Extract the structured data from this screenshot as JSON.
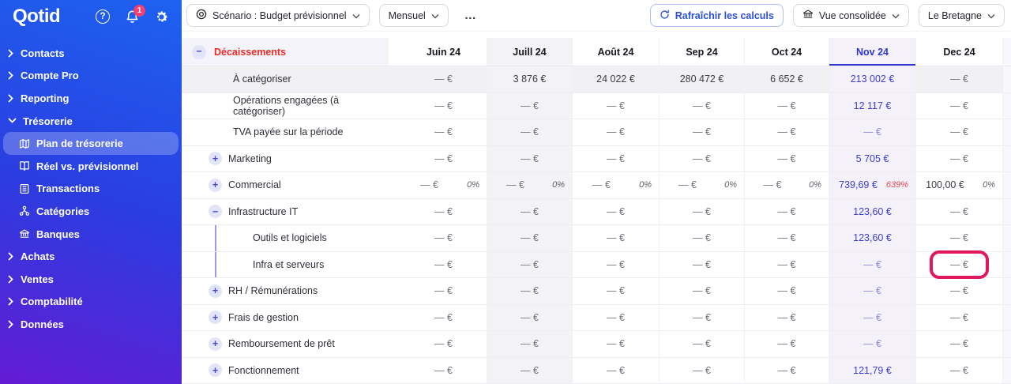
{
  "app": {
    "logo": "Qotid",
    "notification_count": "1"
  },
  "colors": {
    "accent_blue": "#2f36cf",
    "decaissements_red": "#ee2b22",
    "alert_pct_red": "#ea4b50",
    "annotation_pink": "#df1860",
    "sidebar_gradient": [
      "#1d62f0",
      "#641bd4"
    ]
  },
  "sidebar": {
    "items": [
      {
        "label": "Contacts",
        "type": "top",
        "expanded": false
      },
      {
        "label": "Compte Pro",
        "type": "top",
        "expanded": false
      },
      {
        "label": "Reporting",
        "type": "top",
        "expanded": false
      },
      {
        "label": "Trésorerie",
        "type": "top",
        "expanded": true
      },
      {
        "label": "Plan de trésorerie",
        "type": "sub",
        "icon": "map-icon",
        "active": true
      },
      {
        "label": "Réel vs. prévisionnel",
        "type": "sub",
        "icon": "book-icon",
        "active": false
      },
      {
        "label": "Transactions",
        "type": "sub",
        "icon": "list-icon",
        "active": false
      },
      {
        "label": "Catégories",
        "type": "sub",
        "icon": "categories-icon",
        "active": false
      },
      {
        "label": "Banques",
        "type": "sub",
        "icon": "bank-icon",
        "active": false
      },
      {
        "label": "Achats",
        "type": "top",
        "expanded": false
      },
      {
        "label": "Ventes",
        "type": "top",
        "expanded": false
      },
      {
        "label": "Comptabilité",
        "type": "top",
        "expanded": false
      },
      {
        "label": "Données",
        "type": "top",
        "expanded": false
      }
    ]
  },
  "toolbar": {
    "scenario": "Scénario : Budget prévisionnel",
    "period": "Mensuel",
    "more": "…",
    "refresh": "Rafraîchir les calculs",
    "view": "Vue consolidée",
    "entity": "Le Bretagne"
  },
  "table": {
    "section_label": "Décaissements",
    "months": [
      "Juin 24",
      "Juill 24",
      "Août 24",
      "Sep 24",
      "Oct 24",
      "Nov 24",
      "Dec 24"
    ],
    "selected_month": "Nov 24",
    "shaded_month": "Juill 24",
    "annotation": {
      "target_row": "Infra et serveurs",
      "target_month": "Dec 24"
    },
    "rows": [
      {
        "label": "À catégoriser",
        "indent": 1,
        "toggle": null,
        "shaded": true,
        "values": [
          "— €",
          "3 876 €",
          "24 022 €",
          "280 472 €",
          "6 652 €",
          "213 002 €",
          "— €"
        ]
      },
      {
        "label": "Opérations engagées (à catégoriser)",
        "indent": 1,
        "toggle": null,
        "values": [
          "— €",
          "— €",
          "— €",
          "— €",
          "— €",
          "12 117 €",
          "— €"
        ]
      },
      {
        "label": "TVA payée sur la période",
        "indent": 1,
        "toggle": null,
        "values": [
          "— €",
          "— €",
          "— €",
          "— €",
          "— €",
          "— €",
          "— €"
        ]
      },
      {
        "label": "Marketing",
        "indent": 1,
        "toggle": "plus",
        "values": [
          "— €",
          "— €",
          "— €",
          "— €",
          "— €",
          "5 705 €",
          "— €"
        ]
      },
      {
        "label": "Commercial",
        "indent": 1,
        "toggle": "plus",
        "values": [
          "— €",
          "— €",
          "— €",
          "— €",
          "— €",
          "739,69 €",
          "100,00 €"
        ],
        "pcts": [
          "0%",
          "0%",
          "0%",
          "0%",
          "0%",
          "639%",
          "0%"
        ],
        "pct_alert_index": 5
      },
      {
        "label": "Infrastructure IT",
        "indent": 1,
        "toggle": "minus",
        "values": [
          "— €",
          "— €",
          "— €",
          "— €",
          "— €",
          "123,60 €",
          "— €"
        ]
      },
      {
        "label": "Outils et logiciels",
        "indent": 2,
        "toggle": null,
        "connector": true,
        "values": [
          "— €",
          "— €",
          "— €",
          "— €",
          "— €",
          "123,60 €",
          "— €"
        ]
      },
      {
        "label": "Infra et serveurs",
        "indent": 2,
        "toggle": null,
        "connector": true,
        "annotation_index": 6,
        "values": [
          "— €",
          "— €",
          "— €",
          "— €",
          "— €",
          "— €",
          "— €"
        ]
      },
      {
        "label": "RH / Rémunérations",
        "indent": 1,
        "toggle": "plus",
        "values": [
          "— €",
          "— €",
          "— €",
          "— €",
          "— €",
          "— €",
          "— €"
        ]
      },
      {
        "label": "Frais de gestion",
        "indent": 1,
        "toggle": "plus",
        "values": [
          "— €",
          "— €",
          "— €",
          "— €",
          "— €",
          "— €",
          "— €"
        ]
      },
      {
        "label": "Remboursement de prêt",
        "indent": 1,
        "toggle": "plus",
        "values": [
          "— €",
          "— €",
          "— €",
          "— €",
          "— €",
          "— €",
          "— €"
        ]
      },
      {
        "label": "Fonctionnement",
        "indent": 1,
        "toggle": "plus",
        "values": [
          "— €",
          "— €",
          "— €",
          "— €",
          "— €",
          "121,79 €",
          "— €"
        ]
      }
    ]
  }
}
